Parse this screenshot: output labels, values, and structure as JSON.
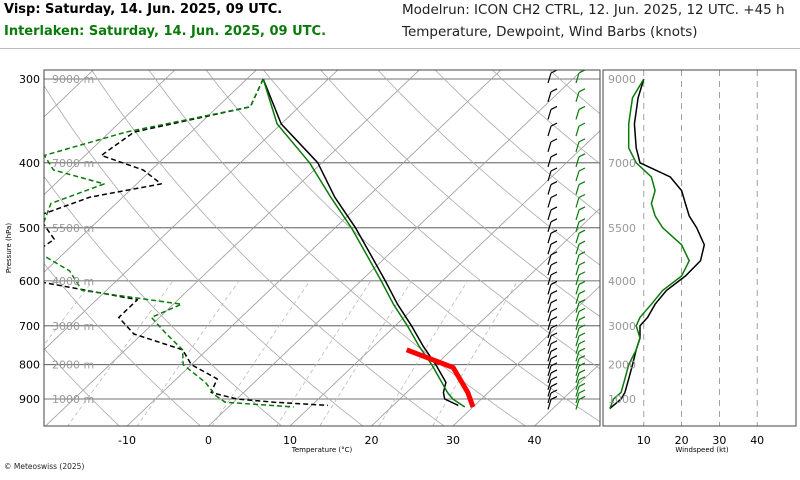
{
  "header": {
    "title_station1": "Visp: Saturday, 14. Jun. 2025, 09 UTC.",
    "title_station2": "Interlaken: Saturday, 14. Jun. 2025, 09 UTC.",
    "model_run": "Modelrun: ICON CH2 CTRL, 12. Jun. 2025, 12 UTC. +45 h",
    "variables": "Temperature, Dewpoint, Wind Barbs (knots)"
  },
  "copyright": "© Meteoswiss (2025)",
  "colors": {
    "station1": "#000000",
    "station2": "#0a7a0a",
    "highlight": "#ff0000",
    "grid": "#999999"
  },
  "chart_data": [
    {
      "type": "line",
      "subtype": "skew-t",
      "xlabel": "Temperature (°C)",
      "ylabel": "Pressure (hPa)",
      "x_ticks": [
        -10,
        0,
        10,
        20,
        30,
        40
      ],
      "x_tick_labels": [
        "-10",
        "0",
        "10",
        "20",
        "30",
        "40"
      ],
      "y_ticks": [
        300,
        400,
        500,
        600,
        700,
        800,
        900
      ],
      "y_tick_labels": [
        "300",
        "400",
        "500",
        "600",
        "700",
        "800",
        "900"
      ],
      "altitude_labels": [
        "9000 m",
        "7000 m",
        "5500 m",
        "4000 m",
        "3000 m",
        "2000 m",
        "1000 m"
      ],
      "altitude_pressures": [
        300,
        400,
        500,
        600,
        700,
        800,
        900
      ],
      "series": [
        {
          "name": "Visp temperature",
          "station": 1,
          "style": "solid",
          "pressure": [
            300,
            350,
            400,
            450,
            500,
            550,
            600,
            650,
            700,
            750,
            800,
            850,
            880,
            900,
            920
          ],
          "values": [
            -38,
            -30,
            -20.5,
            -14,
            -7.5,
            -2,
            3,
            7.5,
            12,
            16,
            20,
            23.5,
            24.5,
            25.5,
            28
          ]
        },
        {
          "name": "Visp dewpoint",
          "station": 1,
          "style": "dashed",
          "pressure": [
            300,
            330,
            360,
            390,
            410,
            430,
            450,
            480,
            520,
            560,
            600,
            640,
            680,
            720,
            760,
            800,
            840,
            880,
            900,
            910,
            920
          ],
          "values": [
            -38,
            -36,
            -47,
            -48,
            -41,
            -37,
            -44,
            -48,
            -43,
            -44,
            -40,
            -25,
            -25,
            -21,
            -13,
            -10,
            -5,
            -4,
            0,
            5,
            12
          ]
        },
        {
          "name": "Interlaken temperature",
          "station": 2,
          "style": "solid",
          "pressure": [
            300,
            350,
            400,
            450,
            500,
            550,
            600,
            650,
            700,
            750,
            800,
            850,
            880,
            900,
            925
          ],
          "values": [
            -38,
            -30.5,
            -21.5,
            -14.5,
            -8,
            -2.5,
            2.5,
            7,
            11.5,
            15.5,
            19.5,
            23,
            25,
            26.5,
            29
          ]
        },
        {
          "name": "Interlaken dewpoint",
          "station": 2,
          "style": "dashed",
          "pressure": [
            300,
            330,
            360,
            390,
            410,
            430,
            460,
            500,
            540,
            580,
            620,
            650,
            680,
            720,
            760,
            800,
            850,
            890,
            910,
            925
          ],
          "values": [
            -38,
            -36,
            -48,
            -55,
            -52,
            -44,
            -48,
            -46,
            -44,
            -37,
            -33,
            -19,
            -21,
            -17,
            -13,
            -11,
            -6,
            -3,
            -1,
            8
          ]
        },
        {
          "name": "Surface heating profile",
          "station": 0,
          "style": "bold",
          "pressure": [
            760,
            808,
            880,
            925
          ],
          "values": [
            14.5,
            22.5,
            27.5,
            30
          ]
        }
      ],
      "wind_barbs": {
        "station1_levels": [
          300,
          320,
          340,
          360,
          380,
          400,
          420,
          440,
          460,
          480,
          500,
          520,
          540,
          560,
          580,
          600,
          620,
          640,
          660,
          680,
          700,
          720,
          740,
          760,
          780,
          800,
          820,
          840,
          860,
          880,
          900,
          920
        ],
        "station2_levels": [
          300,
          320,
          340,
          360,
          380,
          400,
          420,
          440,
          460,
          480,
          500,
          520,
          540,
          560,
          580,
          600,
          620,
          640,
          660,
          680,
          700,
          720,
          740,
          760,
          780,
          800,
          820,
          840,
          860,
          880,
          900,
          920
        ]
      }
    },
    {
      "type": "line",
      "subtype": "wind-speed-profile",
      "xlabel": "Windspeed (kt)",
      "x_ticks": [
        10,
        20,
        30,
        40
      ],
      "x_tick_labels": [
        "10",
        "20",
        "30",
        "40"
      ],
      "altitude_labels": [
        "9000",
        "7000",
        "5500",
        "4000",
        "3000",
        "2000",
        "1000"
      ],
      "altitude_pressures": [
        300,
        400,
        500,
        600,
        700,
        800,
        900
      ],
      "series": [
        {
          "name": "Visp wind speed",
          "station": 1,
          "pressure": [
            300,
            320,
            350,
            380,
            400,
            420,
            440,
            460,
            480,
            500,
            530,
            560,
            590,
            620,
            650,
            680,
            700,
            730,
            760,
            800,
            840,
            880,
            900,
            930
          ],
          "values": [
            10,
            8.5,
            7.5,
            8,
            9,
            17,
            20,
            21,
            22,
            24,
            26,
            25,
            21,
            16,
            13,
            11,
            9,
            9,
            8,
            7,
            6,
            5,
            4,
            1
          ]
        },
        {
          "name": "Interlaken wind speed",
          "station": 2,
          "pressure": [
            300,
            320,
            350,
            380,
            400,
            420,
            440,
            460,
            480,
            500,
            530,
            560,
            590,
            620,
            650,
            680,
            700,
            730,
            760,
            800,
            840,
            880,
            900,
            930
          ],
          "values": [
            10,
            7,
            6,
            6,
            8,
            12,
            13,
            12,
            13,
            15,
            20,
            22,
            20,
            15,
            12,
            9,
            8,
            9,
            8,
            6,
            5,
            4,
            2,
            1
          ]
        }
      ]
    }
  ]
}
